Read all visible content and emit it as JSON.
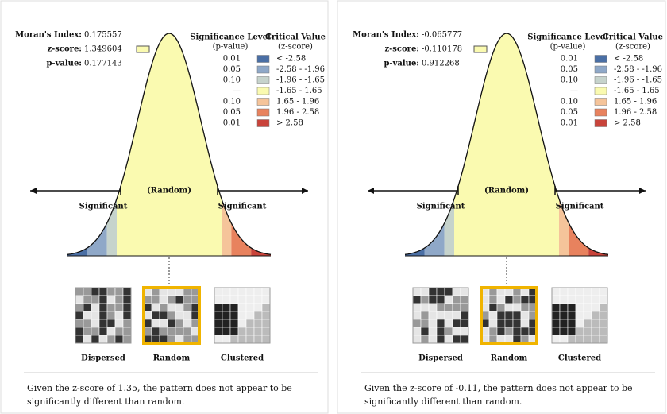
{
  "panels": [
    {
      "stats": [
        {
          "label": "Moran's Index:",
          "value": "0.175557"
        },
        {
          "label": "z-score:",
          "value": "1.349604"
        },
        {
          "label": "p-value:",
          "value": "0.177143"
        }
      ],
      "legend": {
        "level_header": [
          "Significance Level",
          "(p-value)"
        ],
        "value_header": [
          "Critical Value",
          "(z-score)"
        ],
        "rows": [
          {
            "level": "0.01",
            "range": "< -2.58",
            "color": "#4a6fa5"
          },
          {
            "level": "0.05",
            "range": "-2.58 - -1.96",
            "color": "#8fa8c8"
          },
          {
            "level": "0.10",
            "range": "-1.96 - -1.65",
            "color": "#c6d3cc"
          },
          {
            "level": "—",
            "range": "-1.65 - 1.65",
            "color": "#fafab0"
          },
          {
            "level": "0.10",
            "range": "1.65 - 1.96",
            "color": "#f5c49a"
          },
          {
            "level": "0.05",
            "range": "1.96 - 2.58",
            "color": "#e8825e"
          },
          {
            "level": "0.01",
            "range": "> 2.58",
            "color": "#c9433a"
          }
        ]
      },
      "curve": {
        "left": "Significant",
        "middle": "(Random)",
        "right": "Significant"
      },
      "patterns": [
        "Dispersed",
        "Random",
        "Clustered"
      ],
      "conclusion": "Given the z-score of 1.35, the pattern does not appear to be significantly different than random."
    },
    {
      "stats": [
        {
          "label": "Moran's Index:",
          "value": "-0.065777"
        },
        {
          "label": "z-score:",
          "value": "-0.110178"
        },
        {
          "label": "p-value:",
          "value": "0.912268"
        }
      ],
      "legend": {
        "level_header": [
          "Significance Level",
          "(p-value)"
        ],
        "value_header": [
          "Critical Value",
          "(z-score)"
        ],
        "rows": [
          {
            "level": "0.01",
            "range": "< -2.58",
            "color": "#4a6fa5"
          },
          {
            "level": "0.05",
            "range": "-2.58 - -1.96",
            "color": "#8fa8c8"
          },
          {
            "level": "0.10",
            "range": "-1.96 - -1.65",
            "color": "#c6d3cc"
          },
          {
            "level": "—",
            "range": "-1.65 - 1.65",
            "color": "#fafab0"
          },
          {
            "level": "0.10",
            "range": "1.65 - 1.96",
            "color": "#f5c49a"
          },
          {
            "level": "0.05",
            "range": "1.96 - 2.58",
            "color": "#e8825e"
          },
          {
            "level": "0.01",
            "range": "> 2.58",
            "color": "#c9433a"
          }
        ]
      },
      "curve": {
        "left": "Significant",
        "middle": "(Random)",
        "right": "Significant"
      },
      "patterns": [
        "Dispersed",
        "Random",
        "Clustered"
      ],
      "conclusion": "Given the z-score of -0.11, the pattern does not appear to be significantly different than random."
    }
  ]
}
